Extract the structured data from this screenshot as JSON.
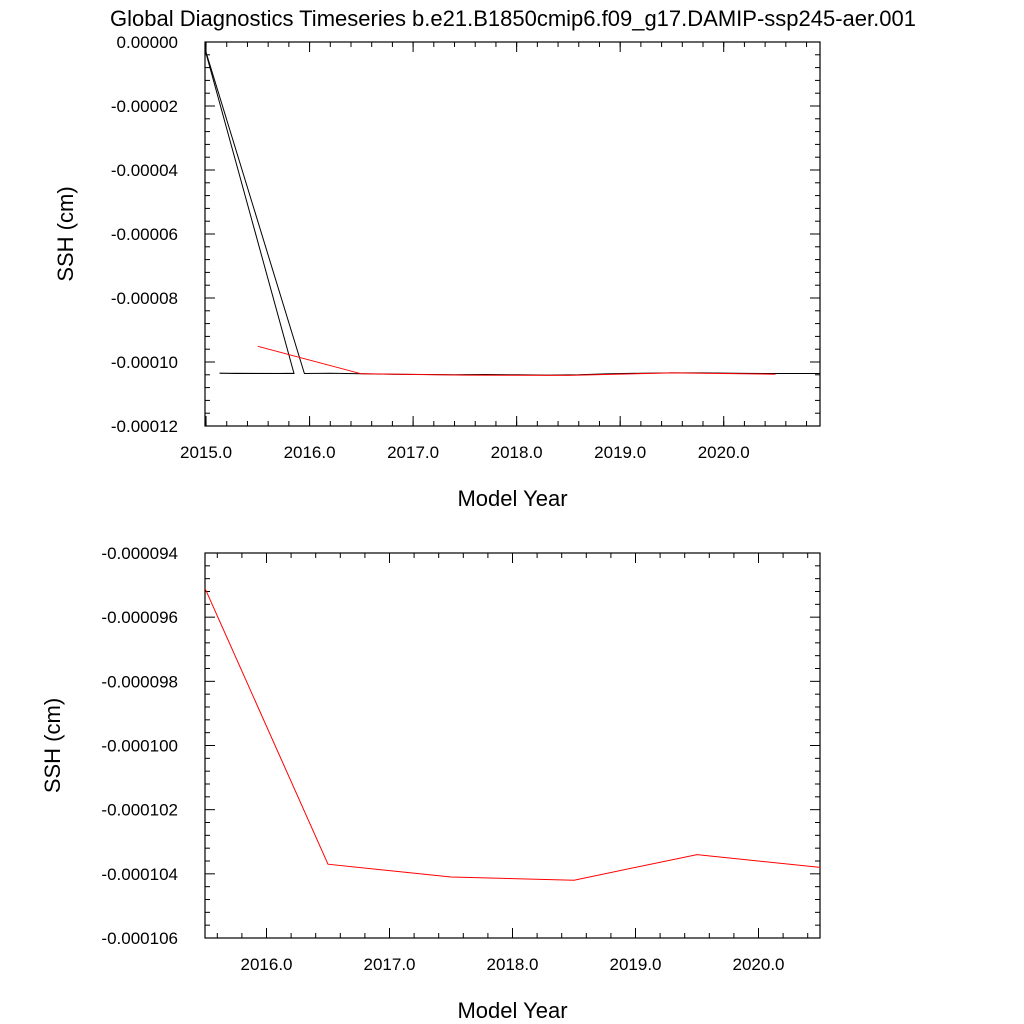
{
  "page_title": "Global Diagnostics Timeseries b.e21.B1850cmip6.f09_g17.DAMIP-ssp245-aer.001",
  "chart_data": [
    {
      "type": "line",
      "title": "Global Diagnostics Timeseries b.e21.B1850cmip6.f09_g17.DAMIP-ssp245-aer.001",
      "xlabel": "Model Year",
      "ylabel": "SSH (cm)",
      "xlim": [
        2014.99,
        2020.93
      ],
      "ylim": [
        -0.00012,
        0.0
      ],
      "xticks": [
        2015.0,
        2016.0,
        2017.0,
        2018.0,
        2019.0,
        2020.0
      ],
      "xtick_labels": [
        "2015.0",
        "2016.0",
        "2017.0",
        "2018.0",
        "2019.0",
        "2020.0"
      ],
      "yticks": [
        0.0,
        -2e-05,
        -4e-05,
        -6e-05,
        -8e-05,
        -0.0001,
        -0.00012
      ],
      "ytick_labels": [
        "0.00000",
        "-0.00002",
        "-0.00004",
        "-0.00006",
        "-0.00008",
        "-0.00010",
        "-0.00012"
      ],
      "series": [
        {
          "color": "#000000",
          "x": [
            2014.97,
            2015.85,
            2015.13,
            2015.3,
            2015.5,
            2015.7,
            2015.85
          ],
          "y": [
            0.0,
            -0.0001036,
            -0.0001035,
            -0.0001036,
            -0.0001036,
            -0.0001036,
            -0.0001035
          ]
        },
        {
          "color": "#000000",
          "x": [
            2014.97,
            2015.95,
            2016.2,
            2016.5,
            2016.8,
            2017.1,
            2017.4,
            2017.7,
            2018.0,
            2018.3,
            2018.6,
            2018.9,
            2019.2,
            2019.5,
            2019.8,
            2020.1,
            2020.4,
            2020.7,
            2020.93
          ],
          "y": [
            0.0,
            -0.0001036,
            -0.0001035,
            -0.0001037,
            -0.0001038,
            -0.0001039,
            -0.000104,
            -0.0001039,
            -0.000104,
            -0.0001041,
            -0.000104,
            -0.0001037,
            -0.0001035,
            -0.0001034,
            -0.0001034,
            -0.0001035,
            -0.0001036,
            -0.0001036,
            -0.0001036
          ]
        },
        {
          "color": "#ff0000",
          "x": [
            2015.5,
            2016.5,
            2017.5,
            2018.5,
            2019.5,
            2020.5
          ],
          "y": [
            -9.51e-05,
            -0.0001037,
            -0.0001041,
            -0.0001042,
            -0.0001034,
            -0.0001038
          ]
        }
      ]
    },
    {
      "type": "line",
      "title": "",
      "xlabel": "Model Year",
      "ylabel": "SSH (cm)",
      "xlim": [
        2015.5,
        2020.5
      ],
      "ylim": [
        -0.000106,
        -9.4e-05
      ],
      "xticks": [
        2016.0,
        2017.0,
        2018.0,
        2019.0,
        2020.0
      ],
      "xtick_labels": [
        "2016.0",
        "2017.0",
        "2018.0",
        "2019.0",
        "2020.0"
      ],
      "yticks": [
        -9.4e-05,
        -9.6e-05,
        -9.8e-05,
        -0.0001,
        -0.000102,
        -0.000104,
        -0.000106
      ],
      "ytick_labels": [
        "-0.000094",
        "-0.000096",
        "-0.000098",
        "-0.000100",
        "-0.000102",
        "-0.000104",
        "-0.000106"
      ],
      "series": [
        {
          "color": "#ff0000",
          "x": [
            2015.5,
            2016.5,
            2017.5,
            2018.5,
            2019.5,
            2020.5
          ],
          "y": [
            -9.51e-05,
            -0.0001037,
            -0.0001041,
            -0.0001042,
            -0.0001034,
            -0.0001038
          ]
        }
      ]
    }
  ]
}
